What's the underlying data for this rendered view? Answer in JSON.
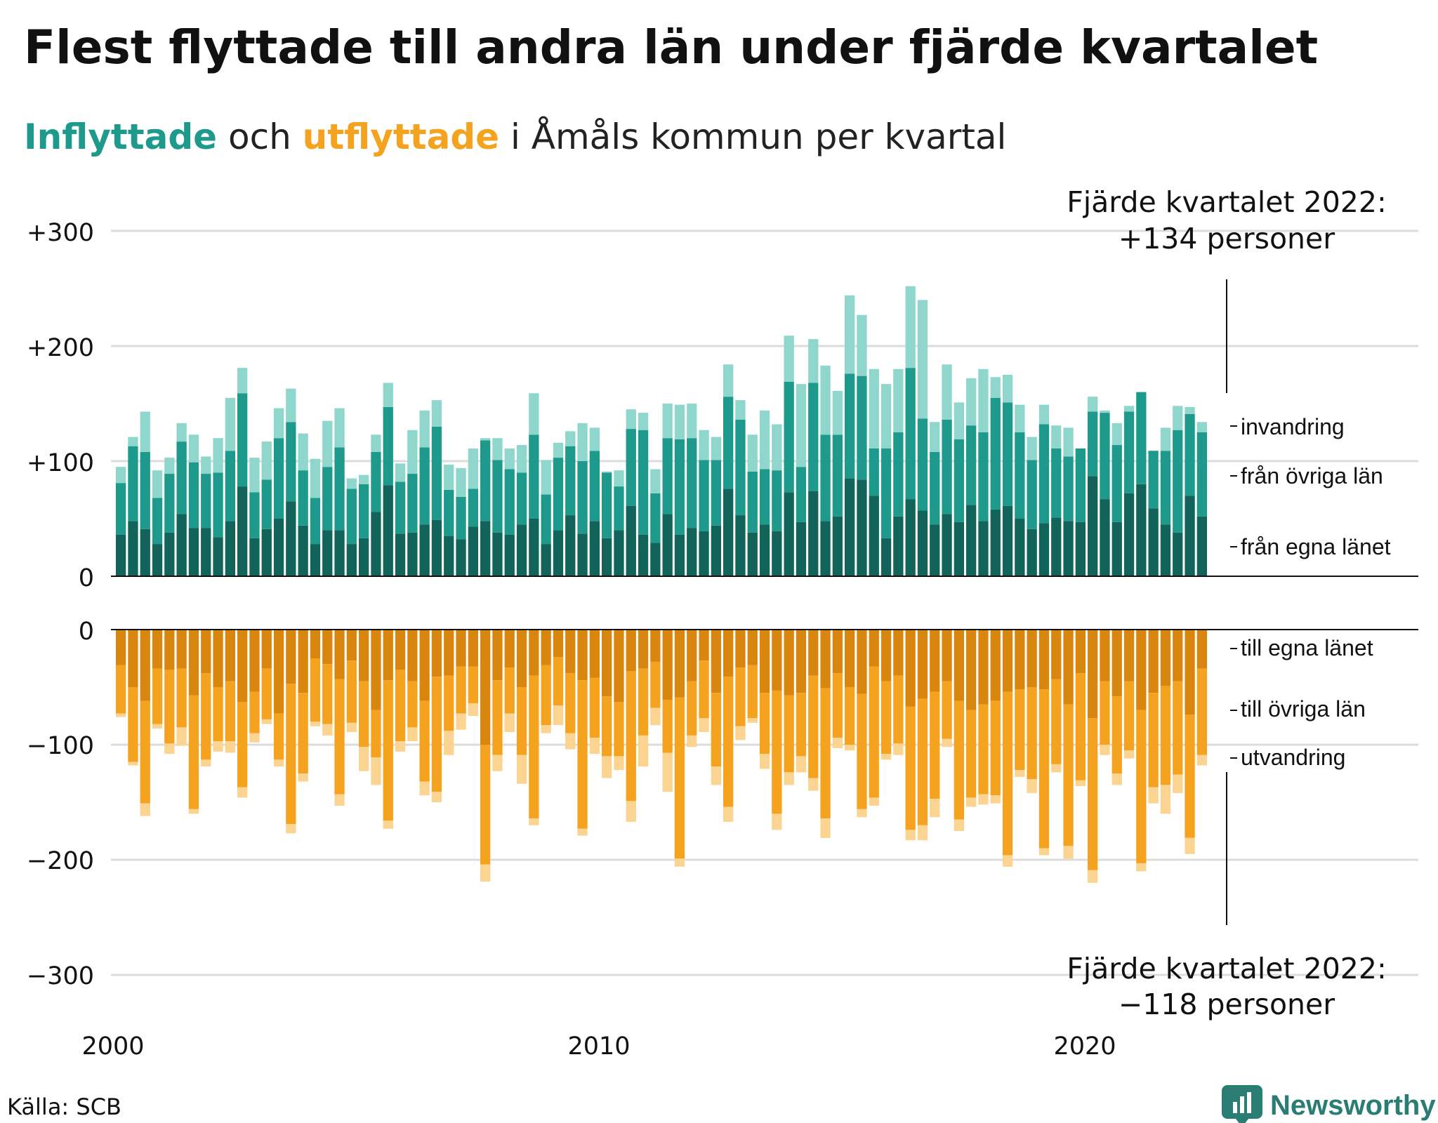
{
  "title": "Flest flyttade till andra län under fjärde kvartalet",
  "subtitle": {
    "in_word": "Inflyttade",
    "connector": " och ",
    "out_word": "utflyttade",
    "rest": " i Åmåls kommun per kvartal"
  },
  "annotation_top": {
    "line1": "Fjärde kvartalet 2022:",
    "line2": "+134 personer"
  },
  "annotation_bottom": {
    "line1": "Fjärde kvartalet 2022:",
    "line2": "−118 personer"
  },
  "source": "Källa: SCB",
  "brand": "Newsworthy",
  "colors": {
    "in_own": "#12635a",
    "in_other": "#1e9a8c",
    "in_immig": "#8fd7cd",
    "out_own": "#d9860f",
    "out_other": "#f5a21e",
    "out_emig": "#fbd491",
    "brand": "#2a7d73"
  },
  "chart_data": [
    {
      "type": "bar",
      "stacked": true,
      "panel": "top",
      "x_start": "2000 Q1",
      "x_end": "2022 Q4",
      "x_tick_labels": [
        "2000",
        "2010",
        "2020"
      ],
      "y_tick_labels": [
        "+300",
        "+200",
        "+100",
        "0"
      ],
      "ylim": [
        0,
        300
      ],
      "grid": true,
      "series": [
        {
          "name": "från egna länet",
          "values": [
            36,
            48,
            41,
            28,
            38,
            54,
            42,
            42,
            34,
            48,
            78,
            33,
            41,
            50,
            65,
            44,
            28,
            40,
            40,
            28,
            33,
            56,
            79,
            37,
            38,
            45,
            49,
            35,
            32,
            43,
            48,
            38,
            36,
            45,
            50,
            28,
            40,
            53,
            37,
            48,
            33,
            40,
            61,
            36,
            29,
            54,
            36,
            42,
            39,
            44,
            76,
            53,
            38,
            45,
            39,
            73,
            47,
            74,
            48,
            52,
            85,
            84,
            70,
            33,
            52,
            67,
            57,
            45,
            54,
            47,
            62,
            48,
            58,
            61,
            50,
            41,
            46,
            51,
            48,
            47,
            87,
            67,
            47,
            72,
            80,
            59,
            45,
            38,
            70,
            52
          ],
          "legend_label": "från egna länet"
        },
        {
          "name": "från övriga län",
          "values": [
            45,
            65,
            67,
            40,
            51,
            63,
            57,
            47,
            56,
            61,
            81,
            40,
            43,
            70,
            69,
            48,
            40,
            55,
            72,
            48,
            47,
            52,
            68,
            45,
            51,
            67,
            81,
            40,
            37,
            33,
            70,
            63,
            57,
            45,
            73,
            43,
            63,
            60,
            63,
            61,
            57,
            38,
            67,
            91,
            43,
            66,
            83,
            78,
            62,
            57,
            80,
            83,
            53,
            48,
            53,
            96,
            48,
            94,
            75,
            71,
            91,
            90,
            41,
            78,
            73,
            114,
            80,
            63,
            82,
            72,
            69,
            77,
            97,
            90,
            75,
            60,
            86,
            60,
            56,
            64,
            56,
            75,
            67,
            71,
            80,
            50,
            64,
            89,
            71,
            73
          ]
        },
        {
          "name": "invandring",
          "values": [
            14,
            8,
            35,
            24,
            14,
            16,
            24,
            15,
            30,
            46,
            22,
            30,
            33,
            26,
            29,
            32,
            34,
            40,
            34,
            9,
            8,
            15,
            21,
            16,
            38,
            32,
            23,
            22,
            25,
            35,
            2,
            19,
            18,
            24,
            36,
            30,
            13,
            13,
            33,
            20,
            1,
            14,
            17,
            15,
            21,
            30,
            30,
            30,
            26,
            20,
            28,
            17,
            32,
            51,
            40,
            40,
            72,
            38,
            60,
            38,
            68,
            53,
            69,
            56,
            55,
            71,
            103,
            26,
            48,
            32,
            41,
            55,
            18,
            24,
            24,
            20,
            17,
            20,
            25,
            0,
            13,
            2,
            19,
            5,
            0,
            0,
            20,
            21,
            6,
            9
          ]
        }
      ],
      "legend": [
        "invandring",
        "från övriga län",
        "från egna länet"
      ]
    },
    {
      "type": "bar",
      "stacked": true,
      "panel": "bottom",
      "x_start": "2000 Q1",
      "x_end": "2022 Q4",
      "y_tick_labels": [
        "0",
        "−100",
        "−200",
        "−300"
      ],
      "ylim": [
        -300,
        0
      ],
      "grid": true,
      "series": [
        {
          "name": "till egna länet",
          "values": [
            -31,
            -50,
            -62,
            -34,
            -35,
            -34,
            -57,
            -38,
            -50,
            -45,
            -63,
            -54,
            -34,
            -73,
            -47,
            -55,
            -25,
            -30,
            -43,
            -27,
            -45,
            -70,
            -44,
            -35,
            -45,
            -62,
            -41,
            -40,
            -32,
            -32,
            -100,
            -44,
            -33,
            -50,
            -40,
            -31,
            -24,
            -38,
            -44,
            -42,
            -58,
            -63,
            -36,
            -34,
            -28,
            -61,
            -59,
            -45,
            -27,
            -55,
            -41,
            -33,
            -31,
            -55,
            -53,
            -57,
            -55,
            -40,
            -51,
            -38,
            -50,
            -56,
            -32,
            -45,
            -40,
            -67,
            -60,
            -54,
            -45,
            -62,
            -70,
            -65,
            -62,
            -54,
            -52,
            -50,
            -52,
            -43,
            -65,
            -38,
            -77,
            -45,
            -58,
            -45,
            -70,
            -55,
            -49,
            -45,
            -74,
            -34
          ],
          "legend_label": "till egna länet"
        },
        {
          "name": "till övriga län",
          "values": [
            -42,
            -65,
            -89,
            -48,
            -64,
            -51,
            -99,
            -75,
            -47,
            -52,
            -74,
            -36,
            -44,
            -40,
            -122,
            -70,
            -55,
            -52,
            -100,
            -54,
            -57,
            -41,
            -122,
            -62,
            -40,
            -70,
            -100,
            -48,
            -41,
            -32,
            -104,
            -65,
            -40,
            -59,
            -124,
            -52,
            -42,
            -52,
            -129,
            -52,
            -52,
            -47,
            -113,
            -58,
            -40,
            -46,
            -140,
            -47,
            -50,
            -64,
            -113,
            -51,
            -46,
            -53,
            -107,
            -67,
            -55,
            -89,
            -113,
            -56,
            -50,
            -100,
            -114,
            -63,
            -59,
            -107,
            -110,
            -93,
            -50,
            -103,
            -76,
            -78,
            -82,
            -142,
            -70,
            -80,
            -138,
            -74,
            -123,
            -93,
            -132,
            -55,
            -67,
            -60,
            -133,
            -82,
            -86,
            -81,
            -107,
            -75
          ],
          "legend_label": "till övriga län"
        },
        {
          "name": "utvandring",
          "values": [
            -3,
            -3,
            -11,
            -4,
            -9,
            -16,
            -4,
            -6,
            -9,
            -10,
            -9,
            -8,
            -4,
            -6,
            -8,
            -7,
            -4,
            -10,
            -10,
            -8,
            -21,
            -24,
            -7,
            -9,
            -12,
            -12,
            -9,
            -21,
            -14,
            -11,
            -15,
            -14,
            -16,
            -25,
            -6,
            -7,
            -17,
            -14,
            -6,
            -14,
            -19,
            -12,
            -18,
            -27,
            -15,
            -34,
            -7,
            -10,
            -12,
            -16,
            -13,
            -12,
            -4,
            -13,
            -14,
            -11,
            -14,
            -11,
            -17,
            -9,
            -5,
            -7,
            -7,
            -5,
            -10,
            -9,
            -13,
            -16,
            -7,
            -10,
            -8,
            -9,
            -7,
            -10,
            -6,
            -12,
            -6,
            -7,
            -11,
            -5,
            -11,
            -9,
            -10,
            -7,
            -7,
            -14,
            -25,
            -16,
            -14,
            -9
          ]
        }
      ],
      "legend": [
        "till egna länet",
        "till övriga län",
        "utvandring"
      ]
    }
  ]
}
